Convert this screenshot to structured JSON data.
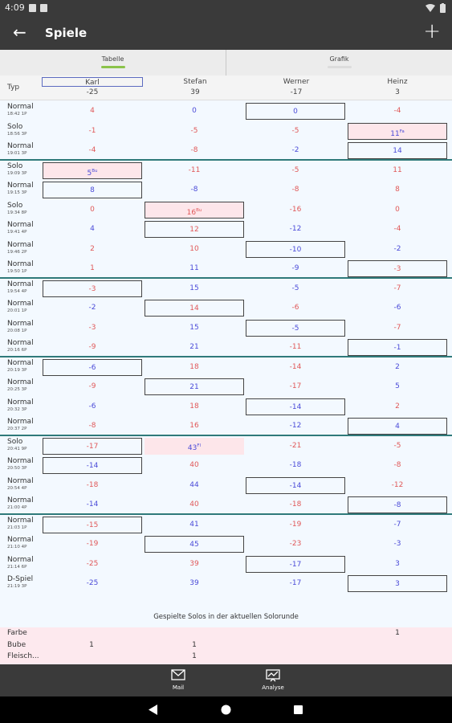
{
  "status_bar": {
    "time": "4:09"
  },
  "app_bar": {
    "title": "Spiele"
  },
  "tabs": [
    {
      "label": "Tabelle",
      "active": true
    },
    {
      "label": "Grafik",
      "active": false
    }
  ],
  "colors": {
    "accent": "#8bc34a",
    "positive": "#4a4ad8",
    "negative": "#e05858",
    "separator": "#2f7a7a",
    "solo_highlight": "#fde6ea"
  },
  "table": {
    "type_header": "Typ",
    "players": [
      {
        "name": "Karl",
        "total": "-25"
      },
      {
        "name": "Stefan",
        "total": "39"
      },
      {
        "name": "Werner",
        "total": "-17"
      },
      {
        "name": "Heinz",
        "total": "3"
      }
    ],
    "rows": [
      {
        "type": "Normal",
        "time": "18:42 1P",
        "cells": [
          {
            "v": "4"
          },
          {
            "v": "0",
            "pos": true
          },
          {
            "v": "0",
            "box": true,
            "pos": true
          },
          {
            "v": "-4"
          }
        ]
      },
      {
        "type": "Solo",
        "time": "18:56 3P",
        "cells": [
          {
            "v": "-1"
          },
          {
            "v": "-5"
          },
          {
            "v": "-5"
          },
          {
            "v": "11",
            "sup": "Fa",
            "box": true,
            "pink": true,
            "pos": true
          }
        ]
      },
      {
        "type": "Normal",
        "time": "19:01 3P",
        "cells": [
          {
            "v": "-4"
          },
          {
            "v": "-8"
          },
          {
            "v": "-2",
            "pos": true
          },
          {
            "v": "14",
            "box": true,
            "pos": true
          }
        ]
      },
      {
        "type": "Solo",
        "time": "19:09 3P",
        "sep": true,
        "cells": [
          {
            "v": "5",
            "sup": "Bu",
            "box": true,
            "pink": true,
            "pos": true
          },
          {
            "v": "-11"
          },
          {
            "v": "-5"
          },
          {
            "v": "11"
          }
        ]
      },
      {
        "type": "Normal",
        "time": "19:15 3P",
        "cells": [
          {
            "v": "8",
            "box": true,
            "pos": true
          },
          {
            "v": "-8",
            "pos": true
          },
          {
            "v": "-8"
          },
          {
            "v": "8"
          }
        ]
      },
      {
        "type": "Solo",
        "time": "19:34 8P",
        "cells": [
          {
            "v": "0"
          },
          {
            "v": "16",
            "sup": "Bu",
            "box": true,
            "pink": true
          },
          {
            "v": "-16"
          },
          {
            "v": "0"
          }
        ]
      },
      {
        "type": "Normal",
        "time": "19:41 4P",
        "cells": [
          {
            "v": "4",
            "pos": true
          },
          {
            "v": "12",
            "box": true
          },
          {
            "v": "-12",
            "pos": true
          },
          {
            "v": "-4"
          }
        ]
      },
      {
        "type": "Normal",
        "time": "19:46 2P",
        "cells": [
          {
            "v": "2"
          },
          {
            "v": "10"
          },
          {
            "v": "-10",
            "box": true,
            "pos": true
          },
          {
            "v": "-2",
            "pos": true
          }
        ]
      },
      {
        "type": "Normal",
        "time": "19:50 1P",
        "cells": [
          {
            "v": "1"
          },
          {
            "v": "11",
            "pos": true
          },
          {
            "v": "-9",
            "pos": true
          },
          {
            "v": "-3",
            "box": true
          }
        ]
      },
      {
        "type": "Normal",
        "time": "19:54 4P",
        "sep": true,
        "cells": [
          {
            "v": "-3",
            "box": true
          },
          {
            "v": "15",
            "pos": true
          },
          {
            "v": "-5",
            "pos": true
          },
          {
            "v": "-7"
          }
        ]
      },
      {
        "type": "Normal",
        "time": "20:01 1P",
        "cells": [
          {
            "v": "-2",
            "pos": true
          },
          {
            "v": "14",
            "box": true
          },
          {
            "v": "-6"
          },
          {
            "v": "-6",
            "pos": true
          }
        ]
      },
      {
        "type": "Normal",
        "time": "20:08 1P",
        "cells": [
          {
            "v": "-3"
          },
          {
            "v": "15",
            "pos": true
          },
          {
            "v": "-5",
            "box": true,
            "pos": true
          },
          {
            "v": "-7"
          }
        ]
      },
      {
        "type": "Normal",
        "time": "20:16 6P",
        "cells": [
          {
            "v": "-9"
          },
          {
            "v": "21",
            "pos": true
          },
          {
            "v": "-11"
          },
          {
            "v": "-1",
            "box": true,
            "pos": true
          }
        ]
      },
      {
        "type": "Normal",
        "time": "20:19 3P",
        "sep": true,
        "cells": [
          {
            "v": "-6",
            "box": true,
            "pos": true
          },
          {
            "v": "18"
          },
          {
            "v": "-14"
          },
          {
            "v": "2",
            "pos": true
          }
        ]
      },
      {
        "type": "Normal",
        "time": "20:25 3P",
        "cells": [
          {
            "v": "-9"
          },
          {
            "v": "21",
            "box": true,
            "pos": true
          },
          {
            "v": "-17"
          },
          {
            "v": "5",
            "pos": true
          }
        ]
      },
      {
        "type": "Normal",
        "time": "20:32 3P",
        "cells": [
          {
            "v": "-6",
            "pos": true
          },
          {
            "v": "18"
          },
          {
            "v": "-14",
            "box": true,
            "pos": true
          },
          {
            "v": "2"
          }
        ]
      },
      {
        "type": "Normal",
        "time": "20:37 2P",
        "cells": [
          {
            "v": "-8"
          },
          {
            "v": "16"
          },
          {
            "v": "-12",
            "pos": true
          },
          {
            "v": "4",
            "box": true,
            "pos": true
          }
        ]
      },
      {
        "type": "Solo",
        "time": "20:41 9P",
        "sep": true,
        "cells": [
          {
            "v": "-17",
            "box": true
          },
          {
            "v": "43",
            "sup": "Fl",
            "pink": true,
            "pos": true
          },
          {
            "v": "-21"
          },
          {
            "v": "-5"
          }
        ]
      },
      {
        "type": "Normal",
        "time": "20:50 3P",
        "cells": [
          {
            "v": "-14",
            "box": true,
            "pos": true
          },
          {
            "v": "40"
          },
          {
            "v": "-18",
            "pos": true
          },
          {
            "v": "-8"
          }
        ]
      },
      {
        "type": "Normal",
        "time": "20:54 4P",
        "cells": [
          {
            "v": "-18"
          },
          {
            "v": "44",
            "pos": true
          },
          {
            "v": "-14",
            "box": true,
            "pos": true
          },
          {
            "v": "-12"
          }
        ]
      },
      {
        "type": "Normal",
        "time": "21:00 4P",
        "cells": [
          {
            "v": "-14",
            "pos": true
          },
          {
            "v": "40"
          },
          {
            "v": "-18"
          },
          {
            "v": "-8",
            "box": true,
            "pos": true
          }
        ]
      },
      {
        "type": "Normal",
        "time": "21:03 1P",
        "sep": true,
        "cells": [
          {
            "v": "-15",
            "box": true
          },
          {
            "v": "41",
            "pos": true
          },
          {
            "v": "-19"
          },
          {
            "v": "-7",
            "pos": true
          }
        ]
      },
      {
        "type": "Normal",
        "time": "21:10 4P",
        "cells": [
          {
            "v": "-19"
          },
          {
            "v": "45",
            "box": true,
            "pos": true
          },
          {
            "v": "-23"
          },
          {
            "v": "-3",
            "pos": true
          }
        ]
      },
      {
        "type": "Normal",
        "time": "21:14 6P",
        "cells": [
          {
            "v": "-25"
          },
          {
            "v": "39"
          },
          {
            "v": "-17",
            "box": true,
            "pos": true
          },
          {
            "v": "3",
            "pos": true
          }
        ]
      },
      {
        "type": "D-Spiel",
        "time": "21:19 3P",
        "cells": [
          {
            "v": "-25",
            "pos": true
          },
          {
            "v": "39",
            "pos": true
          },
          {
            "v": "-17",
            "pos": true
          },
          {
            "v": "3",
            "box": true,
            "pos": true
          }
        ]
      }
    ]
  },
  "solos": {
    "title": "Gespielte Solos in der aktuellen Solorunde",
    "rows": [
      {
        "label": "Farbe",
        "values": [
          "",
          "",
          "",
          "1"
        ]
      },
      {
        "label": "Bube",
        "values": [
          "1",
          "1",
          "",
          ""
        ]
      },
      {
        "label": "Fleisch...",
        "values": [
          "",
          "1",
          "",
          ""
        ]
      }
    ]
  },
  "bottom_nav": [
    {
      "label": "Mail",
      "icon": "mail-icon"
    },
    {
      "label": "Analyse",
      "icon": "analysis-icon"
    }
  ]
}
